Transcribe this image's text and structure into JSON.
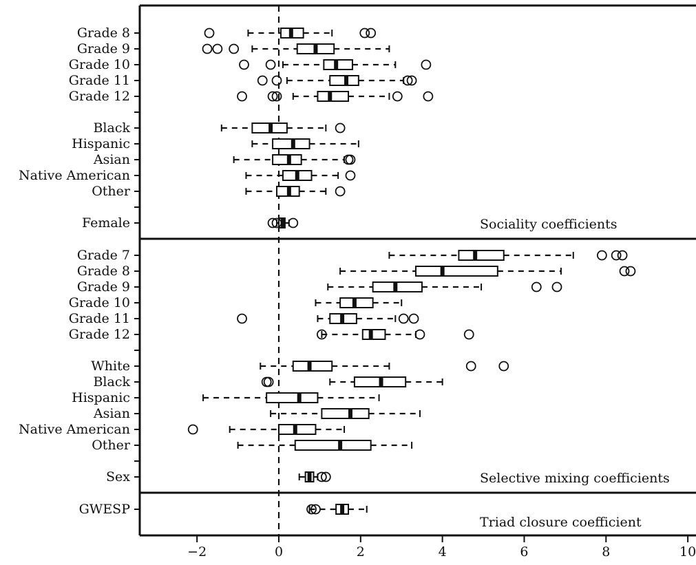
{
  "chart_data": {
    "type": "boxplot",
    "orientation": "horizontal",
    "xlim": [
      -3.4,
      10.2
    ],
    "x_ticks": [
      -2,
      0,
      2,
      4,
      6,
      8,
      10
    ],
    "reference_line_x": 0,
    "panels": [
      {
        "name": "Sociality coefficients",
        "rows": [
          {
            "label": "Grade 8",
            "lw": -0.75,
            "q1": 0.05,
            "med": 0.3,
            "q3": 0.6,
            "uw": 1.3,
            "outliers": [
              -1.7,
              2.1,
              2.25
            ]
          },
          {
            "label": "Grade 9",
            "lw": -0.65,
            "q1": 0.45,
            "med": 0.9,
            "q3": 1.35,
            "uw": 2.7,
            "outliers": [
              -1.75,
              -1.5,
              -1.1
            ]
          },
          {
            "label": "Grade 10",
            "lw": 0.1,
            "q1": 1.1,
            "med": 1.4,
            "q3": 1.8,
            "uw": 2.85,
            "outliers": [
              -0.85,
              -0.2,
              3.6
            ]
          },
          {
            "label": "Grade 11",
            "lw": 0.2,
            "q1": 1.25,
            "med": 1.65,
            "q3": 1.95,
            "uw": 3.05,
            "outliers": [
              -0.4,
              -0.05,
              3.15,
              3.25
            ]
          },
          {
            "label": "Grade 12",
            "lw": 0.35,
            "q1": 0.95,
            "med": 1.25,
            "q3": 1.7,
            "uw": 2.7,
            "outliers": [
              -0.9,
              -0.15,
              -0.05,
              2.9,
              3.65
            ]
          },
          {
            "label": "",
            "gap": true
          },
          {
            "label": "Black",
            "lw": -1.4,
            "q1": -0.65,
            "med": -0.2,
            "q3": 0.2,
            "uw": 1.15,
            "outliers": [
              1.5
            ]
          },
          {
            "label": "Hispanic",
            "lw": -0.65,
            "q1": -0.15,
            "med": 0.35,
            "q3": 0.75,
            "uw": 1.95,
            "outliers": []
          },
          {
            "label": "Asian",
            "lw": -1.1,
            "q1": -0.15,
            "med": 0.25,
            "q3": 0.55,
            "uw": 1.6,
            "outliers": [
              1.7,
              1.75
            ]
          },
          {
            "label": "Native American",
            "lw": -0.8,
            "q1": 0.1,
            "med": 0.45,
            "q3": 0.8,
            "uw": 1.45,
            "outliers": [
              1.75
            ]
          },
          {
            "label": "Other",
            "lw": -0.8,
            "q1": -0.05,
            "med": 0.25,
            "q3": 0.5,
            "uw": 1.15,
            "outliers": [
              1.5
            ]
          },
          {
            "label": "",
            "gap": true
          },
          {
            "label": "Female",
            "lw": -0.05,
            "q1": 0.0,
            "med": 0.1,
            "q3": 0.15,
            "uw": 0.25,
            "outliers": [
              -0.15,
              -0.05,
              0.35
            ]
          }
        ]
      },
      {
        "name": "Selective mixing coefficients",
        "rows": [
          {
            "label": "Grade 7",
            "lw": 2.7,
            "q1": 4.4,
            "med": 4.8,
            "q3": 5.5,
            "uw": 7.2,
            "outliers": [
              7.9,
              8.25,
              8.4
            ]
          },
          {
            "label": "Grade 8",
            "lw": 1.5,
            "q1": 3.35,
            "med": 4.0,
            "q3": 5.35,
            "uw": 6.9,
            "outliers": [
              8.45,
              8.6
            ]
          },
          {
            "label": "Grade 9",
            "lw": 1.2,
            "q1": 2.3,
            "med": 2.85,
            "q3": 3.5,
            "uw": 4.95,
            "outliers": [
              6.3,
              6.8
            ]
          },
          {
            "label": "Grade 10",
            "lw": 0.9,
            "q1": 1.5,
            "med": 1.85,
            "q3": 2.3,
            "uw": 3.0,
            "outliers": []
          },
          {
            "label": "Grade 11",
            "lw": 0.95,
            "q1": 1.25,
            "med": 1.55,
            "q3": 1.9,
            "uw": 2.85,
            "outliers": [
              -0.9,
              3.05,
              3.3
            ]
          },
          {
            "label": "Grade 12",
            "lw": 1.05,
            "q1": 2.05,
            "med": 2.25,
            "q3": 2.6,
            "uw": 3.35,
            "outliers": [
              1.05,
              3.45,
              4.65
            ]
          },
          {
            "label": "",
            "gap": true
          },
          {
            "label": "White",
            "lw": -0.45,
            "q1": 0.35,
            "med": 0.75,
            "q3": 1.3,
            "uw": 2.7,
            "outliers": [
              4.7,
              5.5
            ]
          },
          {
            "label": "Black",
            "lw": 1.25,
            "q1": 1.85,
            "med": 2.5,
            "q3": 3.1,
            "uw": 4.0,
            "outliers": [
              -0.3,
              -0.25
            ]
          },
          {
            "label": "Hispanic",
            "lw": -1.85,
            "q1": -0.3,
            "med": 0.5,
            "q3": 0.95,
            "uw": 2.45,
            "outliers": []
          },
          {
            "label": "Asian",
            "lw": -0.2,
            "q1": 1.05,
            "med": 1.75,
            "q3": 2.2,
            "uw": 3.45,
            "outliers": []
          },
          {
            "label": "Native American",
            "lw": -1.2,
            "q1": 0.0,
            "med": 0.4,
            "q3": 0.9,
            "uw": 1.6,
            "outliers": [
              -2.1
            ]
          },
          {
            "label": "Other",
            "lw": -1.0,
            "q1": 0.4,
            "med": 1.5,
            "q3": 2.25,
            "uw": 3.25,
            "outliers": []
          },
          {
            "label": "",
            "gap": true
          },
          {
            "label": "Sex",
            "lw": 0.5,
            "q1": 0.65,
            "med": 0.75,
            "q3": 0.85,
            "uw": 0.95,
            "outliers": [
              1.05,
              1.15
            ]
          }
        ]
      },
      {
        "name": "Triad closure coefficient",
        "rows": [
          {
            "label": "GWESP",
            "lw": 0.75,
            "q1": 1.4,
            "med": 1.55,
            "q3": 1.7,
            "uw": 2.15,
            "outliers": [
              0.8,
              0.9
            ]
          }
        ]
      }
    ]
  }
}
